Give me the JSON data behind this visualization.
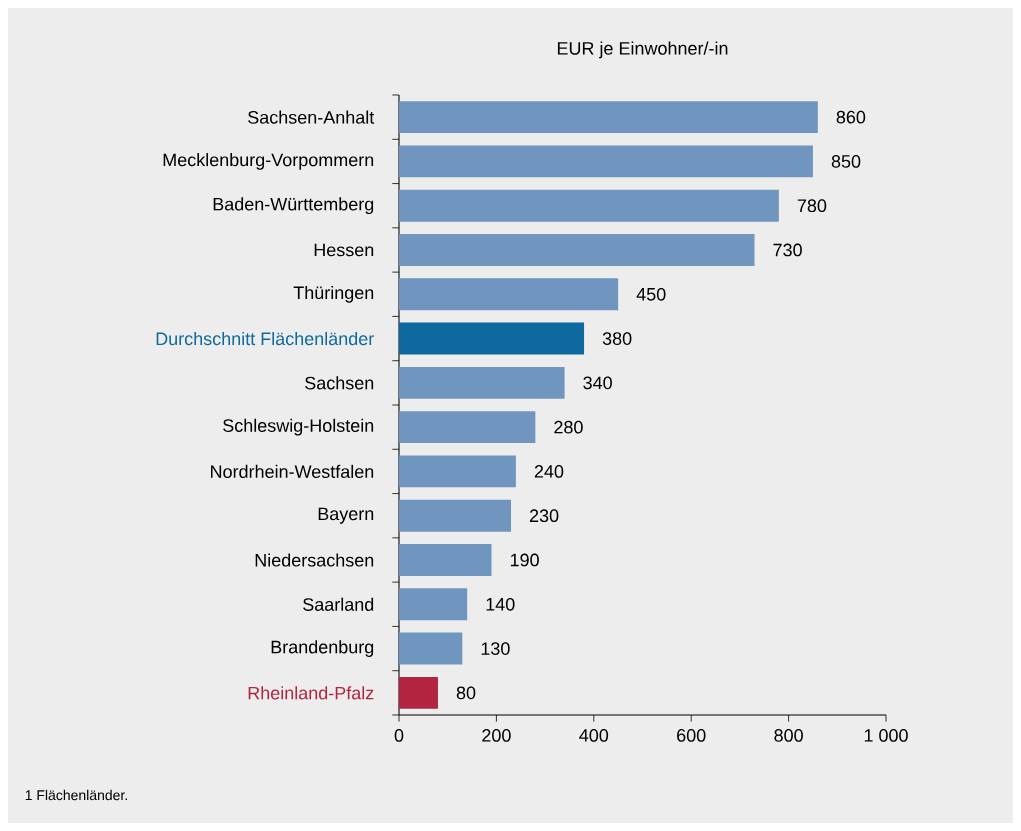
{
  "chart_data": {
    "type": "bar",
    "orientation": "horizontal",
    "xlabel": "EUR je Einwohner/-in",
    "categories": [
      "Sachsen-Anhalt",
      "Mecklenburg-Vorpommern",
      "Baden-Württemberg",
      "Hessen",
      "Thüringen",
      "Durchschnitt Flächenländer",
      "Sachsen",
      "Schleswig-Holstein",
      "Nordrhein-Westfalen",
      "Bayern",
      "Niedersachsen",
      "Saarland",
      "Brandenburg",
      "Rheinland-Pfalz"
    ],
    "values": [
      860,
      850,
      780,
      730,
      450,
      380,
      340,
      280,
      240,
      230,
      190,
      140,
      130,
      80
    ],
    "color": "#7096bf",
    "colors": [
      "#7096bf",
      "#7096bf",
      "#7096bf",
      "#7096bf",
      "#7096bf",
      "#0e6a9e",
      "#7096bf",
      "#7096bf",
      "#7096bf",
      "#7096bf",
      "#7096bf",
      "#7096bf",
      "#7096bf",
      "#b32440"
    ],
    "xlim": [
      0,
      1000
    ],
    "xticks": [
      0,
      200,
      400,
      600,
      800,
      {
        "value": 1000,
        "label": "1 000"
      }
    ],
    "data_labels": true,
    "annotations": [
      "1 Flächenländer."
    ]
  }
}
